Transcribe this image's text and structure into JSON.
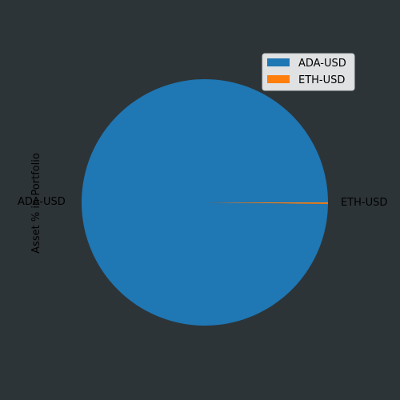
{
  "chart_data": {
    "type": "pie",
    "ylabel": "Asset % in Portfolio",
    "slices": [
      {
        "label": "ADA-USD",
        "value": 99.8,
        "color": "#1f77b4"
      },
      {
        "label": "ETH-USD",
        "value": 0.2,
        "color": "#ff7f0e"
      }
    ],
    "legend": {
      "placement": "top-right",
      "entries": [
        "ADA-USD",
        "ETH-USD"
      ]
    }
  },
  "colors": {
    "background": "#2d3437",
    "legend_background": "#dfe1e2"
  }
}
